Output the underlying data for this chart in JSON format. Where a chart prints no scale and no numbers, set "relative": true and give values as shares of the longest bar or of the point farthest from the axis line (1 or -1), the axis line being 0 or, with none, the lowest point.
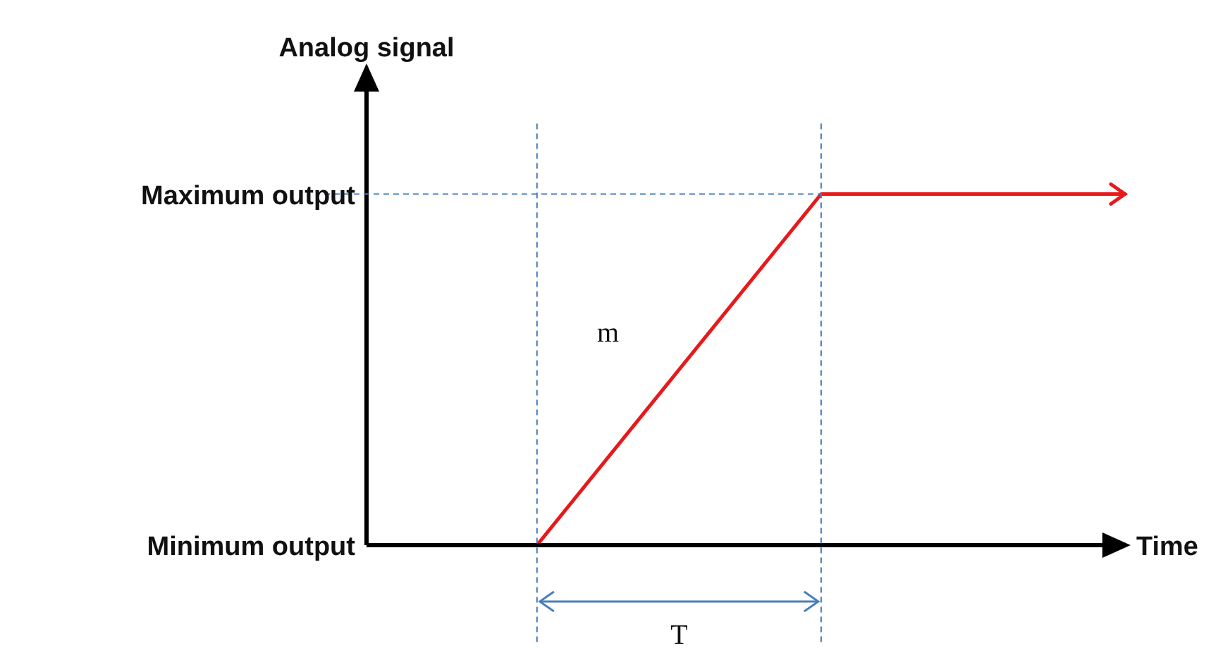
{
  "chart_data": {
    "type": "line",
    "xlabel": "Time",
    "ylabel": "Analog signal",
    "categories": [
      null,
      null,
      null
    ],
    "series": [
      {
        "color": "#e8191b",
        "values": [
          0,
          1,
          1
        ]
      }
    ],
    "relative": true,
    "annotations": [
      "m",
      "T",
      "Maximum output",
      "Minimum output"
    ],
    "marker": "none",
    "line_style": "solid"
  }
}
